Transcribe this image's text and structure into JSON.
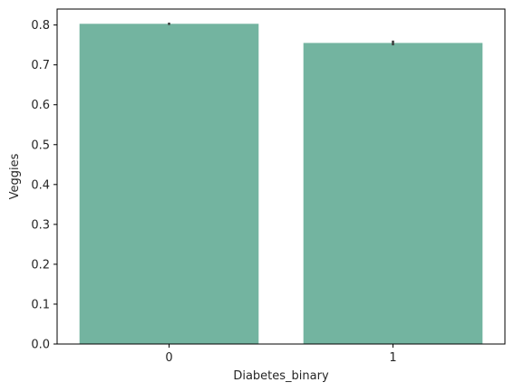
{
  "chart_data": {
    "type": "bar",
    "title": "",
    "xlabel": "Diabetes_binary",
    "ylabel": "Veggies",
    "categories": [
      "0",
      "1"
    ],
    "values": [
      0.803,
      0.755
    ],
    "error_bars": [
      {
        "low": 0.8,
        "high": 0.806
      },
      {
        "low": 0.749,
        "high": 0.761
      }
    ],
    "ylim": [
      0,
      0.84
    ],
    "yticks": [
      0.0,
      0.1,
      0.2,
      0.3,
      0.4,
      0.5,
      0.6,
      0.7,
      0.8
    ],
    "ytick_labels": [
      "0.0",
      "0.1",
      "0.2",
      "0.3",
      "0.4",
      "0.5",
      "0.6",
      "0.7",
      "0.8"
    ],
    "grid": false,
    "legend": "none",
    "bar_color": "#73b4a0",
    "errorbar_color": "#3c3c3c",
    "axis_color": "#000000"
  }
}
